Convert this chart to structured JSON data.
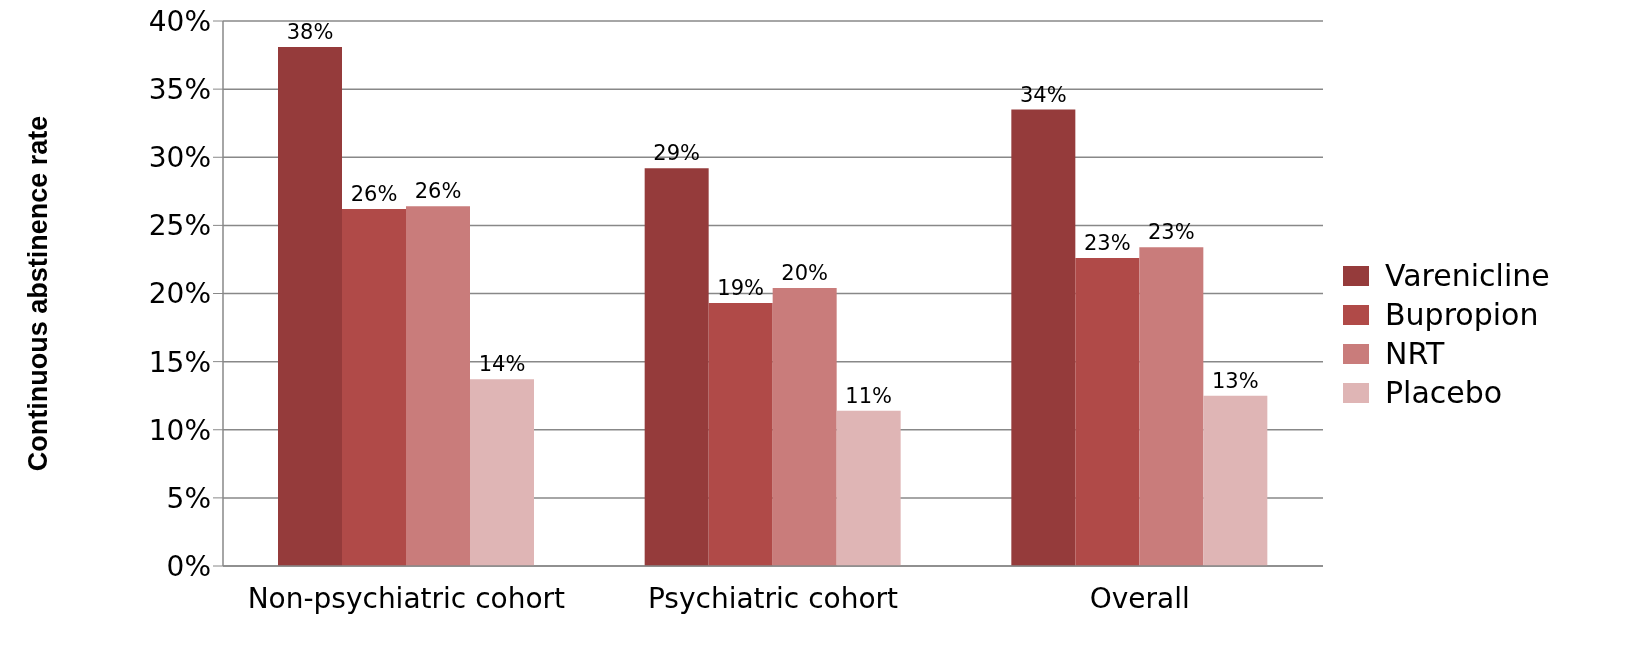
{
  "chart_data": {
    "type": "bar",
    "ylabel": "Continuous abstinence rate",
    "categories": [
      "Non-psychiatric cohort",
      "Psychiatric cohort",
      "Overall"
    ],
    "series": [
      {
        "name": "Varenicline",
        "color": "#953b3b",
        "values": [
          38.1,
          29.2,
          33.5
        ],
        "value_labels": [
          "38%",
          "29%",
          "34%"
        ]
      },
      {
        "name": "Bupropion",
        "color": "#b04a48",
        "values": [
          26.2,
          19.3,
          22.6
        ],
        "value_labels": [
          "26%",
          "19%",
          "23%"
        ]
      },
      {
        "name": "NRT",
        "color": "#c97c7b",
        "values": [
          26.4,
          20.4,
          23.4
        ],
        "value_labels": [
          "26%",
          "20%",
          "23%"
        ]
      },
      {
        "name": "Placebo",
        "color": "#dfb5b5",
        "values": [
          13.7,
          11.4,
          12.5
        ],
        "value_labels": [
          "14%",
          "11%",
          "13%"
        ]
      }
    ],
    "ylim": [
      0,
      40
    ],
    "yticks": [
      {
        "value": 0,
        "label": "0%"
      },
      {
        "value": 5,
        "label": "5%"
      },
      {
        "value": 10,
        "label": "10%"
      },
      {
        "value": 15,
        "label": "15%"
      },
      {
        "value": 20,
        "label": "20%"
      },
      {
        "value": 25,
        "label": "25%"
      },
      {
        "value": 30,
        "label": "30%"
      },
      {
        "value": 35,
        "label": "35%"
      },
      {
        "value": 40,
        "label": "40%"
      }
    ],
    "grid": "y",
    "legend": "right"
  }
}
